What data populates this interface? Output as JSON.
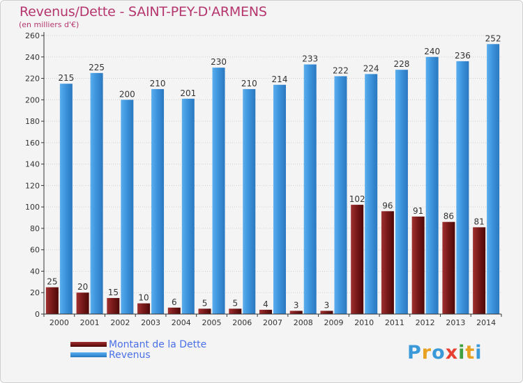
{
  "header": {
    "title": "Revenus/Dette - SAINT-PEY-D'ARMENS",
    "subtitle": "(en milliers d'€)"
  },
  "logo": {
    "text": "Proxiti",
    "letter_colors": [
      "#3a9ad9",
      "#e8a020",
      "#3a9ad9",
      "#e84030",
      "#40a040",
      "#e8a020",
      "#3a9ad9"
    ]
  },
  "colors": {
    "dette": "#7a1a1a",
    "revenus": "#3d94dc",
    "axis": "#333333",
    "grid": "#cfcfcf"
  },
  "chart_data": {
    "type": "bar",
    "categories": [
      "2000",
      "2001",
      "2002",
      "2003",
      "2004",
      "2005",
      "2006",
      "2007",
      "2008",
      "2009",
      "2010",
      "2011",
      "2012",
      "2013",
      "2014"
    ],
    "series": [
      {
        "name": "Montant de la Dette",
        "values": [
          25,
          20,
          15,
          10,
          6,
          5,
          5,
          4,
          3,
          3,
          102,
          96,
          91,
          86,
          81
        ]
      },
      {
        "name": "Revenus",
        "values": [
          215,
          225,
          200,
          210,
          201,
          230,
          210,
          214,
          233,
          222,
          224,
          228,
          240,
          236,
          252
        ]
      }
    ],
    "ylim": [
      0,
      260
    ],
    "yticks": [
      0,
      20,
      40,
      60,
      80,
      100,
      120,
      140,
      160,
      180,
      200,
      220,
      240,
      260
    ],
    "grid": true,
    "legend_position": "bottom-left"
  }
}
